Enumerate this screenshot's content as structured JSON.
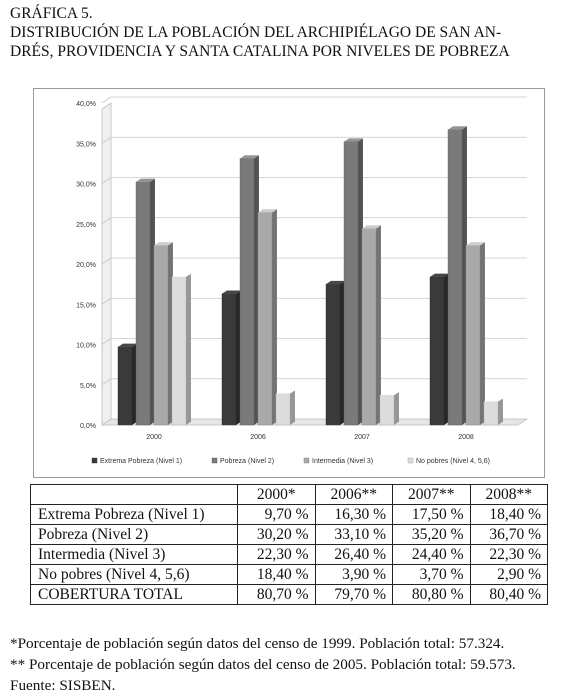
{
  "heading": {
    "label": "GRÁFICA 5.",
    "line1": "DISTRIBUCIÓN DE LA POBLACIÓN DEL ARCHIPIÉLAGO DE SAN AN-",
    "line2": "DRÉS, PROVIDENCIA Y SANTA CATALINA POR NIVELES DE POBREZA"
  },
  "chart_data": {
    "type": "bar",
    "categories": [
      "2000",
      "2006",
      "2007",
      "2008"
    ],
    "y_ticks": [
      "0,0%",
      "5,0%",
      "10,0%",
      "15,0%",
      "20,0%",
      "25,0%",
      "30,0%",
      "35,0%",
      "40,0%"
    ],
    "ylim": [
      0,
      40
    ],
    "grid": true,
    "legend_position": "bottom",
    "series": [
      {
        "name": "Extrema Pobreza (Nivel 1)",
        "values": [
          9.7,
          16.3,
          17.5,
          18.4
        ],
        "color": "#3a3a3a"
      },
      {
        "name": "Pobreza (Nivel 2)",
        "values": [
          30.2,
          33.1,
          35.2,
          36.7
        ],
        "color": "#7a7a7a"
      },
      {
        "name": "Intermedia (Nivel 3)",
        "values": [
          22.3,
          26.4,
          24.4,
          22.3
        ],
        "color": "#a9a9a9"
      },
      {
        "name": "No pobres (Nivel 4, 5,6)",
        "values": [
          18.4,
          3.9,
          3.7,
          2.9
        ],
        "color": "#dcdcdc"
      }
    ]
  },
  "table": {
    "headers": [
      "2000*",
      "2006**",
      "2007**",
      "2008**"
    ],
    "rows": [
      {
        "label": "Extrema Pobreza (Nivel 1)",
        "cells": [
          "9,70 %",
          "16,30 %",
          "17,50 %",
          "18,40 %"
        ]
      },
      {
        "label": "Pobreza (Nivel 2)",
        "cells": [
          "30,20 %",
          "33,10 %",
          "35,20 %",
          "36,70 %"
        ]
      },
      {
        "label": "Intermedia (Nivel 3)",
        "cells": [
          "22,30 %",
          "26,40 %",
          "24,40 %",
          "22,30 %"
        ]
      },
      {
        "label": "No pobres (Nivel 4, 5,6)",
        "cells": [
          "18,40 %",
          "3,90 %",
          "3,70 %",
          "2,90 %"
        ]
      },
      {
        "label": "COBERTURA TOTAL",
        "cells": [
          "80,70 %",
          "79,70 %",
          "80,80 %",
          "80,40 %"
        ]
      }
    ]
  },
  "notes": {
    "note1": "*Porcentaje de población según datos del censo de 1999. Población total: 57.324.",
    "note2": "** Porcentaje de población según datos del censo de 2005. Población total: 59.573.",
    "source": "Fuente: SISBEN."
  }
}
